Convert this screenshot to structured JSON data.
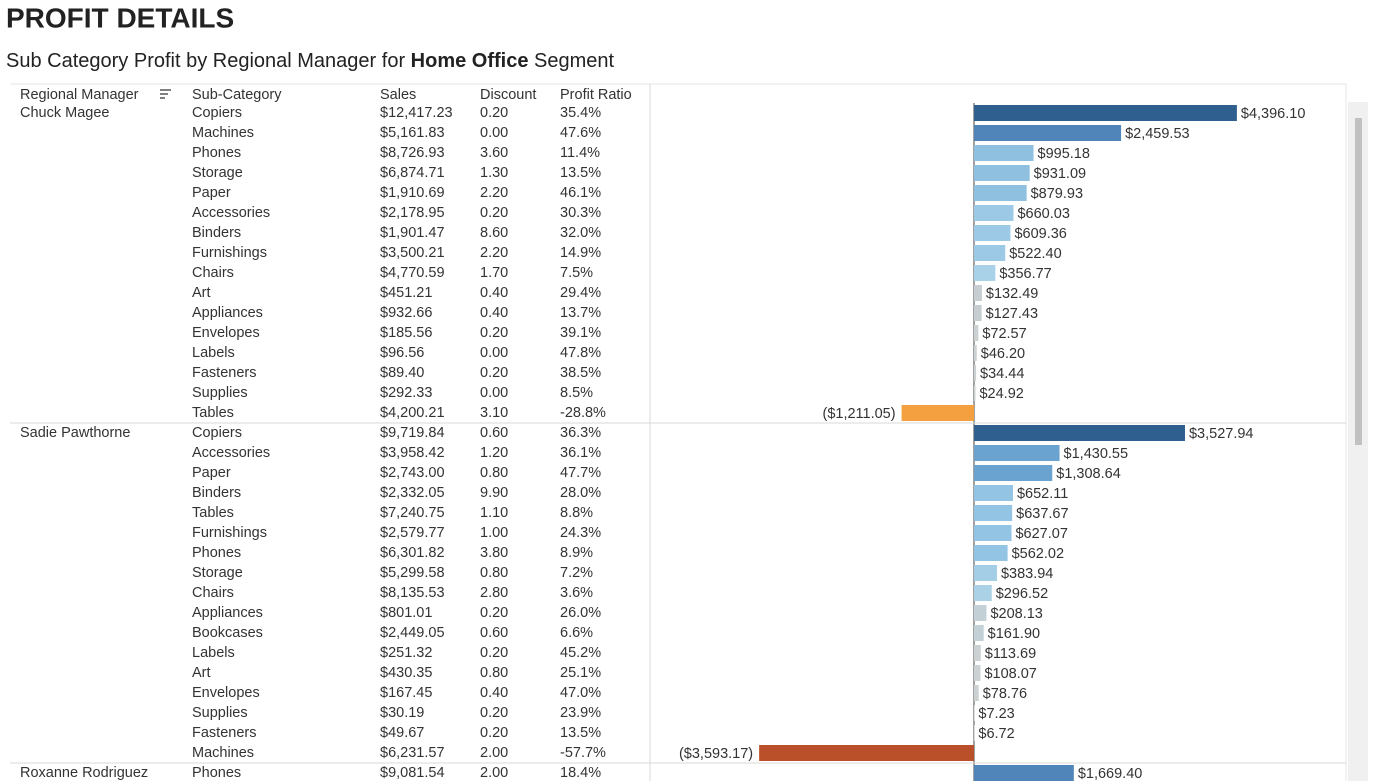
{
  "header": {
    "title": "PROFIT DETAILS",
    "subtitle_before": "Sub Category Profit by Regional Manager for ",
    "subtitle_segment": "Home Office",
    "subtitle_after": " Segment"
  },
  "table": {
    "columns": [
      "Regional Manager",
      "Sub-Category",
      "Sales",
      "Discount",
      "Profit Ratio"
    ],
    "groups": [
      {
        "manager": "Chuck Magee",
        "rows": [
          {
            "sub": "Copiers",
            "sales": "$12,417.23",
            "discount": "0.20",
            "ratio": "35.4%",
            "profit": 4396.1,
            "profit_label": "$4,396.10",
            "color": "#2e5f8f"
          },
          {
            "sub": "Machines",
            "sales": "$5,161.83",
            "discount": "0.00",
            "ratio": "47.6%",
            "profit": 2459.53,
            "profit_label": "$2,459.53",
            "color": "#4f85b8"
          },
          {
            "sub": "Phones",
            "sales": "$8,726.93",
            "discount": "3.60",
            "ratio": "11.4%",
            "profit": 995.18,
            "profit_label": "$995.18",
            "color": "#8fc0e0"
          },
          {
            "sub": "Storage",
            "sales": "$6,874.71",
            "discount": "1.30",
            "ratio": "13.5%",
            "profit": 931.09,
            "profit_label": "$931.09",
            "color": "#8fc0e0"
          },
          {
            "sub": "Paper",
            "sales": "$1,910.69",
            "discount": "2.20",
            "ratio": "46.1%",
            "profit": 879.93,
            "profit_label": "$879.93",
            "color": "#8fc0e0"
          },
          {
            "sub": "Accessories",
            "sales": "$2,178.95",
            "discount": "0.20",
            "ratio": "30.3%",
            "profit": 660.03,
            "profit_label": "$660.03",
            "color": "#9ccae6"
          },
          {
            "sub": "Binders",
            "sales": "$1,901.47",
            "discount": "8.60",
            "ratio": "32.0%",
            "profit": 609.36,
            "profit_label": "$609.36",
            "color": "#9ccae6"
          },
          {
            "sub": "Furnishings",
            "sales": "$3,500.21",
            "discount": "2.20",
            "ratio": "14.9%",
            "profit": 522.4,
            "profit_label": "$522.40",
            "color": "#9ccae6"
          },
          {
            "sub": "Chairs",
            "sales": "$4,770.59",
            "discount": "1.70",
            "ratio": "7.5%",
            "profit": 356.77,
            "profit_label": "$356.77",
            "color": "#a9d2e8"
          },
          {
            "sub": "Art",
            "sales": "$451.21",
            "discount": "0.40",
            "ratio": "29.4%",
            "profit": 132.49,
            "profit_label": "$132.49",
            "color": "#c6ced2"
          },
          {
            "sub": "Appliances",
            "sales": "$932.66",
            "discount": "0.40",
            "ratio": "13.7%",
            "profit": 127.43,
            "profit_label": "$127.43",
            "color": "#c6ced2"
          },
          {
            "sub": "Envelopes",
            "sales": "$185.56",
            "discount": "0.20",
            "ratio": "39.1%",
            "profit": 72.57,
            "profit_label": "$72.57",
            "color": "#ccd2d4"
          },
          {
            "sub": "Labels",
            "sales": "$96.56",
            "discount": "0.00",
            "ratio": "47.8%",
            "profit": 46.2,
            "profit_label": "$46.20",
            "color": "#ccd2d4"
          },
          {
            "sub": "Fasteners",
            "sales": "$89.40",
            "discount": "0.20",
            "ratio": "38.5%",
            "profit": 34.44,
            "profit_label": "$34.44",
            "color": "#ccd2d4"
          },
          {
            "sub": "Supplies",
            "sales": "$292.33",
            "discount": "0.00",
            "ratio": "8.5%",
            "profit": 24.92,
            "profit_label": "$24.92",
            "color": "#ccd2d4"
          },
          {
            "sub": "Tables",
            "sales": "$4,200.21",
            "discount": "3.10",
            "ratio": "-28.8%",
            "profit": -1211.05,
            "profit_label": "($1,211.05)",
            "color": "#f5a040"
          }
        ]
      },
      {
        "manager": "Sadie Pawthorne",
        "rows": [
          {
            "sub": "Copiers",
            "sales": "$9,719.84",
            "discount": "0.60",
            "ratio": "36.3%",
            "profit": 3527.94,
            "profit_label": "$3,527.94",
            "color": "#2e5f8f"
          },
          {
            "sub": "Accessories",
            "sales": "$3,958.42",
            "discount": "1.20",
            "ratio": "36.1%",
            "profit": 1430.55,
            "profit_label": "$1,430.55",
            "color": "#6aa3cf"
          },
          {
            "sub": "Paper",
            "sales": "$2,743.00",
            "discount": "0.80",
            "ratio": "47.7%",
            "profit": 1308.64,
            "profit_label": "$1,308.64",
            "color": "#6aa3cf"
          },
          {
            "sub": "Binders",
            "sales": "$2,332.05",
            "discount": "9.90",
            "ratio": "28.0%",
            "profit": 652.11,
            "profit_label": "$652.11",
            "color": "#93c4e3"
          },
          {
            "sub": "Tables",
            "sales": "$7,240.75",
            "discount": "1.10",
            "ratio": "8.8%",
            "profit": 637.67,
            "profit_label": "$637.67",
            "color": "#93c4e3"
          },
          {
            "sub": "Furnishings",
            "sales": "$2,579.77",
            "discount": "1.00",
            "ratio": "24.3%",
            "profit": 627.07,
            "profit_label": "$627.07",
            "color": "#93c4e3"
          },
          {
            "sub": "Phones",
            "sales": "$6,301.82",
            "discount": "3.80",
            "ratio": "8.9%",
            "profit": 562.02,
            "profit_label": "$562.02",
            "color": "#93c4e3"
          },
          {
            "sub": "Storage",
            "sales": "$5,299.58",
            "discount": "0.80",
            "ratio": "7.2%",
            "profit": 383.94,
            "profit_label": "$383.94",
            "color": "#a4cee6"
          },
          {
            "sub": "Chairs",
            "sales": "$8,135.53",
            "discount": "2.80",
            "ratio": "3.6%",
            "profit": 296.52,
            "profit_label": "$296.52",
            "color": "#aad1e6"
          },
          {
            "sub": "Appliances",
            "sales": "$801.01",
            "discount": "0.20",
            "ratio": "26.0%",
            "profit": 208.13,
            "profit_label": "$208.13",
            "color": "#c3d0d6"
          },
          {
            "sub": "Bookcases",
            "sales": "$2,449.05",
            "discount": "0.60",
            "ratio": "6.6%",
            "profit": 161.9,
            "profit_label": "$161.90",
            "color": "#c3d0d6"
          },
          {
            "sub": "Labels",
            "sales": "$251.32",
            "discount": "0.20",
            "ratio": "45.2%",
            "profit": 113.69,
            "profit_label": "$113.69",
            "color": "#ccd2d4"
          },
          {
            "sub": "Art",
            "sales": "$430.35",
            "discount": "0.80",
            "ratio": "25.1%",
            "profit": 108.07,
            "profit_label": "$108.07",
            "color": "#ccd2d4"
          },
          {
            "sub": "Envelopes",
            "sales": "$167.45",
            "discount": "0.40",
            "ratio": "47.0%",
            "profit": 78.76,
            "profit_label": "$78.76",
            "color": "#ccd2d4"
          },
          {
            "sub": "Supplies",
            "sales": "$30.19",
            "discount": "0.20",
            "ratio": "23.9%",
            "profit": 7.23,
            "profit_label": "$7.23",
            "color": "#ccd2d4"
          },
          {
            "sub": "Fasteners",
            "sales": "$49.67",
            "discount": "0.20",
            "ratio": "13.5%",
            "profit": 6.72,
            "profit_label": "$6.72",
            "color": "#ccd2d4"
          },
          {
            "sub": "Machines",
            "sales": "$6,231.57",
            "discount": "2.00",
            "ratio": "-57.7%",
            "profit": -3593.17,
            "profit_label": "($3,593.17)",
            "color": "#b9502a"
          }
        ]
      },
      {
        "manager": "Roxanne Rodriguez",
        "rows": [
          {
            "sub": "Phones",
            "sales": "$9,081.54",
            "discount": "2.00",
            "ratio": "18.4%",
            "profit": 1669.4,
            "profit_label": "$1,669.40",
            "color": "#4f85b8"
          }
        ]
      }
    ]
  }
}
